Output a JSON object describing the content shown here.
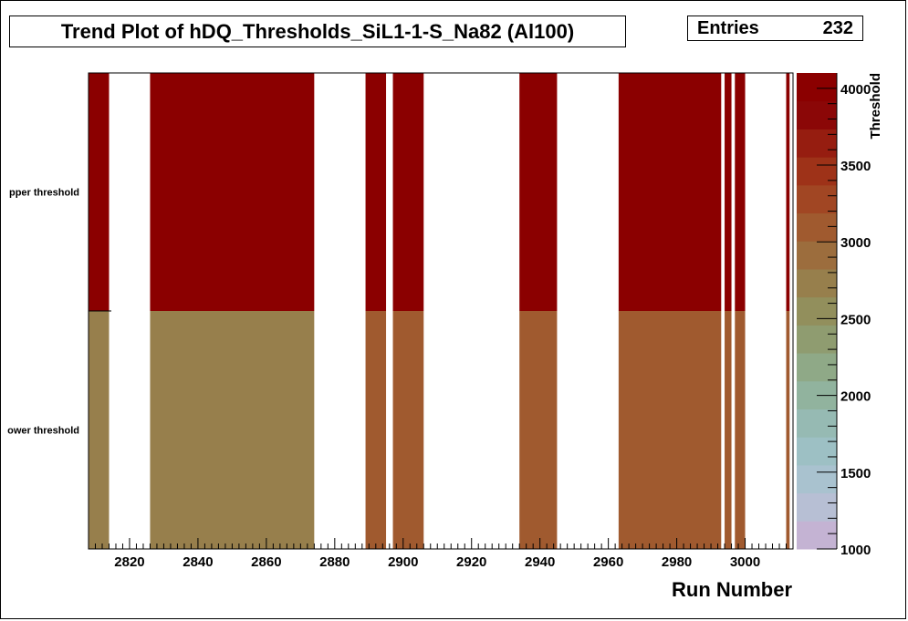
{
  "chart_data": {
    "type": "heatmap",
    "title": "Trend Plot of hDQ_Thresholds_SiL1-1-S_Na82 (Al100)",
    "xlabel": "Run Number",
    "zlabel": "Threshold",
    "xlim": [
      2808,
      3014
    ],
    "xticks": [
      "2820",
      "2840",
      "2860",
      "2880",
      "2900",
      "2920",
      "2940",
      "2960",
      "2980",
      "3000"
    ],
    "y_categories": [
      "lower threshold",
      "upper threshold"
    ],
    "y_category_labels": [
      "ower threshold",
      "pper threshold"
    ],
    "zlim": [
      1000,
      4100
    ],
    "zticks": [
      "1000",
      "1500",
      "2000",
      "2500",
      "3000",
      "3500",
      "4000"
    ],
    "palette": [
      "#c4b3d3",
      "#b7bfd4",
      "#a9c2cf",
      "#9dc0c4",
      "#96bab3",
      "#91b39e",
      "#8fa987",
      "#8f9c70",
      "#928f5c",
      "#977f4c",
      "#9c6d3d",
      "#a05a2f",
      "#a14623",
      "#9e3218",
      "#961d10",
      "#8b0707",
      "#8b0000"
    ],
    "stats": {
      "label": "Entries",
      "value": "232"
    },
    "cells": [
      {
        "x0": 2808,
        "x1": 2814,
        "lower": 2650,
        "upper": 4100
      },
      {
        "x0": 2826,
        "x1": 2874,
        "lower": 2700,
        "upper": 4100
      },
      {
        "x0": 2889,
        "x1": 2895,
        "lower": 3100,
        "upper": 4100
      },
      {
        "x0": 2897,
        "x1": 2906,
        "lower": 3100,
        "upper": 4100
      },
      {
        "x0": 2934,
        "x1": 2945,
        "lower": 3100,
        "upper": 4100
      },
      {
        "x0": 2963,
        "x1": 2993,
        "lower": 3100,
        "upper": 4100
      },
      {
        "x0": 2994,
        "x1": 2996,
        "lower": 3100,
        "upper": 4100
      },
      {
        "x0": 2997,
        "x1": 3000,
        "lower": 3100,
        "upper": 4100
      },
      {
        "x0": 3012,
        "x1": 3013,
        "lower": 3100,
        "upper": 4100
      }
    ]
  }
}
